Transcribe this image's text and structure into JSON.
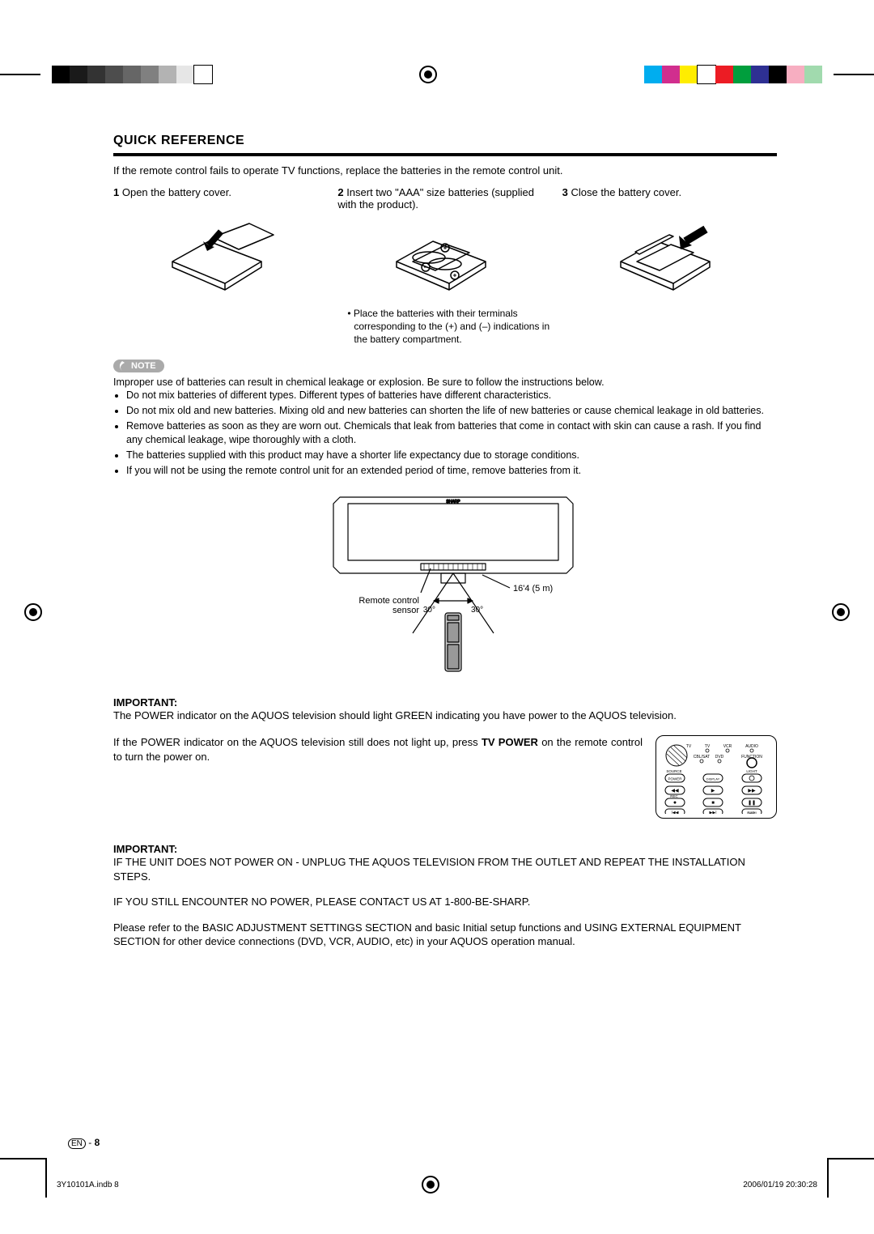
{
  "registration": {
    "gray_shades": [
      "#000000",
      "#1a1a1a",
      "#333333",
      "#4d4d4d",
      "#666666",
      "#808080",
      "#b3b3b3",
      "#e6e6e6",
      "#ffffff"
    ],
    "gray_border": "#000000",
    "color_swatches": [
      "#00adef",
      "#d12e8e",
      "#ffed00",
      "#ffffff",
      "#ec1c24",
      "#009e3d",
      "#2e3092",
      "#000000",
      "#f7aec1",
      "#a1daae"
    ],
    "footer_left": "3Y10101A.indb   8",
    "footer_right": "2006/01/19   20:30:28"
  },
  "header": {
    "title": "QUICK REFERENCE",
    "intro": "If the remote control fails to operate TV functions, replace the batteries in the remote control unit."
  },
  "steps": {
    "s1_num": "1",
    "s1_text": "Open the battery cover.",
    "s2_num": "2",
    "s2_text": "Insert two \"AAA\" size batteries (supplied with the product).",
    "s2_caption": "• Place the batteries with their terminals corresponding to the (+) and (–) indications in the battery compartment.",
    "s3_num": "3",
    "s3_text": "Close the battery cover."
  },
  "note": {
    "badge": "NOTE",
    "lead": "Improper use of batteries can result in chemical leakage or explosion. Be sure to follow the instructions below.",
    "bullets": [
      "Do not mix batteries of different types. Different types of batteries have different characteristics.",
      "Do not mix old and new batteries. Mixing old and new batteries can shorten the life of new batteries or cause chemical leakage in old batteries.",
      "Remove batteries as soon as they are worn out. Chemicals that leak from batteries that come in contact with skin can cause a rash. If you find any chemical leakage, wipe thoroughly with a cloth.",
      "The batteries supplied with this product may have a shorter life expectancy due to storage conditions.",
      "If you will not be using the remote control unit for an extended period of time, remove batteries from it."
    ]
  },
  "tv_diagram": {
    "brand": "SHARP",
    "sensor_label": "Remote control sensor",
    "distance": "16'4 (5 m)",
    "angle_left": "30°",
    "angle_right": "30°"
  },
  "important1": {
    "label": "IMPORTANT:",
    "text": "The POWER indicator on the AQUOS television should light GREEN indicating you have power to the AQUOS television."
  },
  "power_instruction": {
    "prefix": "If the POWER indicator on the AQUOS television still does not light up, press ",
    "bold1": "TV POWER",
    "suffix": " on the remote control to turn the power on."
  },
  "remote_labels": {
    "tv": "TV",
    "tv2": "TV",
    "vcr": "VCR",
    "audio": "AUDIO",
    "cblsat": "CBL/SAT",
    "dvd": "DVD",
    "function": "FUNCTION",
    "source": "SOURCE",
    "power": "POWER",
    "display": "DISPLAY",
    "light": "LIGHT",
    "rec": "REC",
    "btn_rew": "◀◀",
    "btn_play": "▶",
    "btn_ff": "▶▶",
    "btn_rec": "●",
    "btn_stop": "■",
    "btn_pause": "❚❚",
    "btn_skipb": "|◀◀",
    "btn_skipf": "▶▶|",
    "flashback": "FLASHBACK"
  },
  "important2": {
    "label": "IMPORTANT:",
    "line1": "IF THE UNIT DOES NOT POWER ON - UNPLUG THE AQUOS TELEVISION FROM THE OUTLET AND REPEAT THE INSTALLATION STEPS.",
    "line2": "IF YOU STILL ENCOUNTER NO POWER, PLEASE CONTACT US AT 1-800-BE-SHARP.",
    "line3": "Please refer to the BASIC ADJUSTMENT SETTINGS SECTION and basic Initial setup functions and USING EXTERNAL EQUIPMENT SECTION for other device connections (DVD, VCR, AUDIO, etc) in your AQUOS operation manual."
  },
  "page_number": {
    "lang": "EN",
    "sep": " - ",
    "num": "8"
  }
}
